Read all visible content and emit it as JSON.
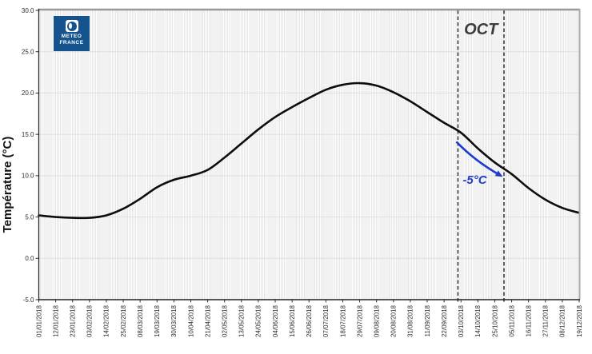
{
  "logo": {
    "line1": "METEO",
    "line2": "FRANCE",
    "background_color": "#15538f"
  },
  "chart_data": {
    "type": "line",
    "title": "",
    "xlabel": "",
    "ylabel": "Température (°C)",
    "ylim": [
      -5,
      30
    ],
    "y_ticks": [
      "30.0",
      "25.0",
      "20.0",
      "15.0",
      "10.0",
      "5.0",
      "0.0",
      "-5.0"
    ],
    "grid": "minor vertical daily stripes, major horizontal every 5°C",
    "legend": "none",
    "categories": [
      "01/01/2018",
      "12/01/2018",
      "23/01/2018",
      "03/02/2018",
      "14/02/2018",
      "25/02/2018",
      "08/03/2018",
      "19/03/2018",
      "30/03/2018",
      "10/04/2018",
      "21/04/2018",
      "02/05/2018",
      "13/05/2018",
      "24/05/2018",
      "04/06/2018",
      "15/06/2018",
      "26/06/2018",
      "07/07/2018",
      "18/07/2018",
      "29/07/2018",
      "09/08/2018",
      "20/08/2018",
      "31/08/2018",
      "11/09/2018",
      "22/09/2018",
      "03/10/2018",
      "14/10/2018",
      "25/10/2018",
      "05/11/2018",
      "16/11/2018",
      "27/11/2018",
      "08/12/2018",
      "19/12/2018"
    ],
    "series": [
      {
        "name": "temperature",
        "color": "#0d0d0d",
        "values": [
          5.2,
          5.0,
          4.9,
          4.9,
          5.2,
          6.0,
          7.2,
          8.6,
          9.5,
          10.0,
          10.7,
          12.2,
          13.9,
          15.6,
          17.1,
          18.3,
          19.4,
          20.4,
          21.0,
          21.2,
          20.9,
          20.1,
          19.0,
          17.7,
          16.4,
          15.2,
          13.3,
          11.6,
          10.2,
          8.5,
          7.1,
          6.1,
          5.5
        ]
      }
    ],
    "annotations": {
      "region_label": "OCT",
      "region_label_color": "#3b3b3b",
      "vline_dates": [
        "01/10/2018",
        "31/10/2018"
      ],
      "vline_color": "#4d4d4d",
      "arrow": {
        "label": "-5°C",
        "color": "#1e3bd1",
        "from_day": 272,
        "from_temp": 14.1,
        "ctrl_day": 284,
        "ctrl_temp": 11.8,
        "to_day": 300,
        "to_temp": 10.1,
        "label_day": 284,
        "label_temp": 9.0
      }
    }
  }
}
